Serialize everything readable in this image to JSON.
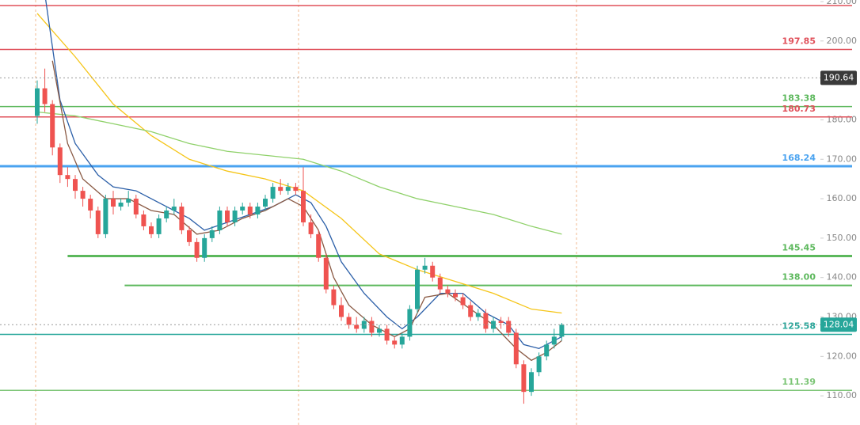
{
  "chart_data": {
    "type": "candlestick",
    "open": [
      181,
      188,
      184,
      173,
      166,
      165,
      162,
      160,
      157,
      151,
      160,
      158,
      159,
      160,
      156,
      153,
      151,
      155,
      157,
      158,
      152,
      149,
      145,
      150,
      152,
      157,
      154,
      157,
      158,
      156,
      158,
      160,
      163,
      162,
      163,
      162,
      154,
      151,
      145,
      137,
      133,
      130,
      128,
      127,
      129,
      126,
      127,
      124,
      123,
      125,
      132,
      142,
      143,
      140,
      137,
      136,
      135,
      133,
      130,
      131,
      127,
      129,
      129,
      126,
      118,
      111,
      116,
      120,
      123,
      125
    ],
    "high": [
      190,
      193,
      185,
      174,
      168,
      166,
      163,
      161,
      158,
      161,
      162,
      160,
      162,
      161,
      157,
      154,
      156,
      158,
      160,
      159,
      153,
      150,
      151,
      153,
      158,
      158,
      158,
      159,
      159,
      159,
      161,
      164,
      165,
      164,
      164,
      168,
      156,
      152,
      146,
      138,
      135,
      131,
      130,
      130,
      130,
      128,
      128,
      125,
      126,
      133,
      143,
      145,
      144,
      141,
      138,
      137,
      136,
      134,
      132,
      132,
      130,
      130,
      130,
      127,
      119,
      117,
      121,
      124,
      127,
      128.5
    ],
    "low": [
      179,
      182,
      171,
      164,
      163,
      160,
      158,
      155,
      150,
      150,
      156,
      157,
      158,
      155,
      152,
      150,
      150,
      154,
      156,
      151,
      148,
      144,
      144,
      149,
      151,
      153,
      153,
      156,
      155,
      155,
      157,
      159,
      161,
      161,
      161,
      153,
      150,
      144,
      136,
      132,
      129,
      127,
      126,
      126,
      125,
      125,
      123,
      122,
      122,
      124,
      131,
      141,
      139,
      136,
      135,
      134,
      132,
      129,
      129,
      126,
      126,
      127,
      125,
      117,
      108,
      110,
      115,
      119,
      122,
      124
    ],
    "close": [
      188,
      184,
      173,
      166,
      165,
      162,
      160,
      157,
      151,
      160,
      158,
      159,
      160,
      156,
      153,
      151,
      155,
      157,
      158,
      152,
      149,
      145,
      150,
      152,
      157,
      154,
      157,
      158,
      156,
      158,
      160,
      163,
      162,
      163,
      162,
      154,
      151,
      145,
      137,
      133,
      130,
      128,
      127,
      129,
      126,
      127,
      124,
      123,
      125,
      132,
      142,
      143,
      140,
      137,
      136,
      135,
      133,
      130,
      131,
      127,
      129,
      128.5,
      126,
      118,
      111,
      116,
      120,
      123,
      125,
      128.04
    ],
    "up_color": "#26a69a",
    "down_color": "#ef5350",
    "ylim": [
      102.6,
      210.4
    ],
    "yticks": [
      {
        "value": 110,
        "label": "110.00"
      },
      {
        "value": 120,
        "label": "120.00"
      },
      {
        "value": 130,
        "label": "130.00"
      },
      {
        "value": 140,
        "label": "140.00"
      },
      {
        "value": 150,
        "label": "150.00"
      },
      {
        "value": 160,
        "label": "160.00"
      },
      {
        "value": 170,
        "label": "170.00"
      },
      {
        "value": 180,
        "label": "180.00"
      },
      {
        "value": 190,
        "label": "190.00"
      },
      {
        "value": 200,
        "label": "200.00"
      },
      {
        "value": 210,
        "label": "210.00"
      }
    ],
    "levels": [
      {
        "value": 209,
        "color": "#e0505a"
      },
      {
        "value": 197.85,
        "label": "197.85",
        "color": "#e0505a"
      },
      {
        "value": 183.38,
        "label": "183.38",
        "color": "#5cb85c"
      },
      {
        "value": 180.73,
        "label": "180.73",
        "color": "#e0505a"
      },
      {
        "value": 168.24,
        "label": "168.24",
        "color": "#4aa3f0",
        "width": 3
      },
      {
        "value": 145.45,
        "label": "145.45",
        "color": "#5cb85c",
        "width": 3,
        "from": 4
      },
      {
        "value": 138,
        "label": "138.00",
        "color": "#5cb85c",
        "width": 2,
        "from": 11.5
      },
      {
        "value": 125.58,
        "label": "125.58",
        "color": "#26a69a"
      },
      {
        "value": 111.39,
        "label": "111.39",
        "color": "#7cc576"
      }
    ],
    "moving_averages": [
      {
        "color": "#f5c518",
        "x": [
          0,
          5,
          10,
          15,
          20,
          25,
          30,
          35,
          40,
          45,
          50,
          55,
          60,
          65,
          69
        ],
        "values": [
          207,
          196,
          184,
          176,
          170,
          167,
          165,
          162,
          155,
          146,
          142,
          139,
          136,
          132,
          131
        ]
      },
      {
        "color": "#8fd16a",
        "x": [
          0,
          5,
          10,
          15,
          20,
          25,
          30,
          35,
          40,
          45,
          50,
          55,
          60,
          65,
          69
        ],
        "values": [
          182,
          181,
          179,
          177,
          174,
          172,
          171,
          170,
          167,
          163,
          160,
          158,
          156,
          153,
          151
        ]
      },
      {
        "color": "#2b5fa8",
        "x": [
          1,
          3,
          5,
          8,
          10,
          13,
          16,
          20,
          22,
          25,
          28,
          31,
          34,
          36,
          38,
          40,
          43,
          46,
          48,
          50,
          53,
          56,
          59,
          62,
          64,
          66,
          69
        ],
        "values": [
          212,
          185,
          174,
          166,
          163,
          162,
          159,
          155,
          152,
          154,
          156,
          158,
          161,
          159,
          153,
          144,
          136,
          130,
          127,
          130,
          136,
          136,
          131,
          128,
          123,
          122,
          125
        ]
      },
      {
        "color": "#8a5a44",
        "x": [
          2,
          4,
          6,
          9,
          12,
          15,
          18,
          21,
          24,
          27,
          30,
          33,
          35,
          37,
          39,
          41,
          44,
          47,
          49,
          51,
          54,
          57,
          60,
          63,
          65,
          67,
          69
        ],
        "values": [
          195,
          174,
          165,
          160,
          160,
          157,
          156,
          151,
          152,
          155,
          157,
          160,
          158,
          152,
          140,
          133,
          128,
          125,
          127,
          135,
          136,
          132,
          128,
          122,
          119,
          121,
          124
        ]
      }
    ],
    "markers": [
      {
        "value": 190.64,
        "color": "#3a3a3a"
      },
      {
        "value": 128.04,
        "color": "#26a69a"
      }
    ]
  }
}
